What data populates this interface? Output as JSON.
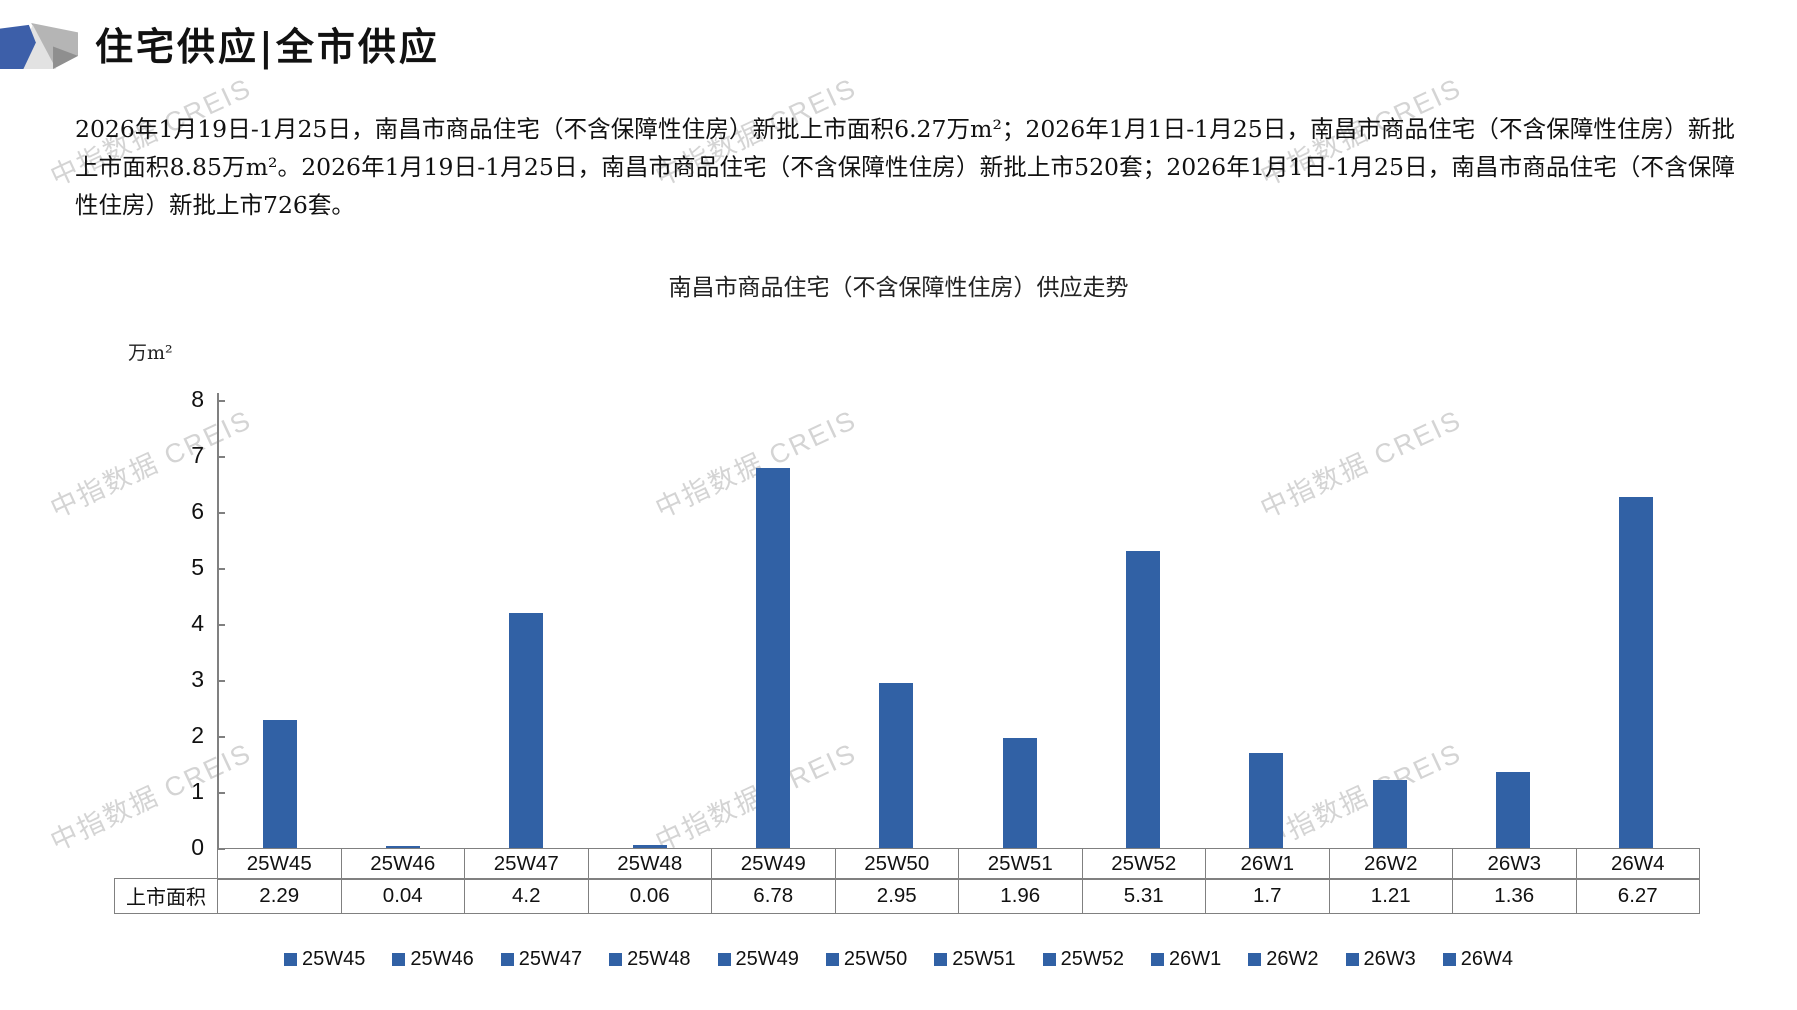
{
  "header": {
    "title": "住宅供应|全市供应"
  },
  "summary_text": "2026年1月19日-1月25日，南昌市商品住宅（不含保障性住房）新批上市面积6.27万m²；2026年1月1日-1月25日，南昌市商品住宅（不含保障性住房）新批上市面积8.85万m²。2026年1月19日-1月25日，南昌市商品住宅（不含保障性住房）新批上市520套；2026年1月1日-1月25日，南昌市商品住宅（不含保障性住房）新批上市726套。",
  "watermark_text": "中指数据 CREIS",
  "chart_data": {
    "type": "bar",
    "title": "南昌市商品住宅（不含保障性住房）供应走势",
    "ylabel_unit": "万m²",
    "series_name": "上市面积",
    "categories": [
      "25W45",
      "25W46",
      "25W47",
      "25W48",
      "25W49",
      "25W50",
      "25W51",
      "25W52",
      "26W1",
      "26W2",
      "26W3",
      "26W4"
    ],
    "values": [
      2.29,
      0.04,
      4.2,
      0.06,
      6.78,
      2.95,
      1.96,
      5.31,
      1.7,
      1.21,
      1.36,
      6.27
    ],
    "values_display": [
      "2.29",
      "0.04",
      "4.2",
      "0.06",
      "6.78",
      "2.95",
      "1.96",
      "5.31",
      "1.7",
      "1.21",
      "1.36",
      "6.27"
    ],
    "ylim": [
      0,
      8
    ],
    "ytick_step": 1,
    "ytick_labels": [
      "0",
      "1",
      "2",
      "3",
      "4",
      "5",
      "6",
      "7",
      "8"
    ],
    "grid": false,
    "legend_position": "bottom",
    "legend_entries": [
      "25W45",
      "25W46",
      "25W47",
      "25W48",
      "25W49",
      "25W50",
      "25W51",
      "25W52",
      "26W1",
      "26W2",
      "26W3",
      "26W4"
    ],
    "bar_color": "#3161a5"
  },
  "colors": {
    "bar": "#3161a5",
    "logo_blue": "#3d5fa9",
    "axis_gray": "#808080",
    "watermark_gray": "#9a9a9a"
  }
}
